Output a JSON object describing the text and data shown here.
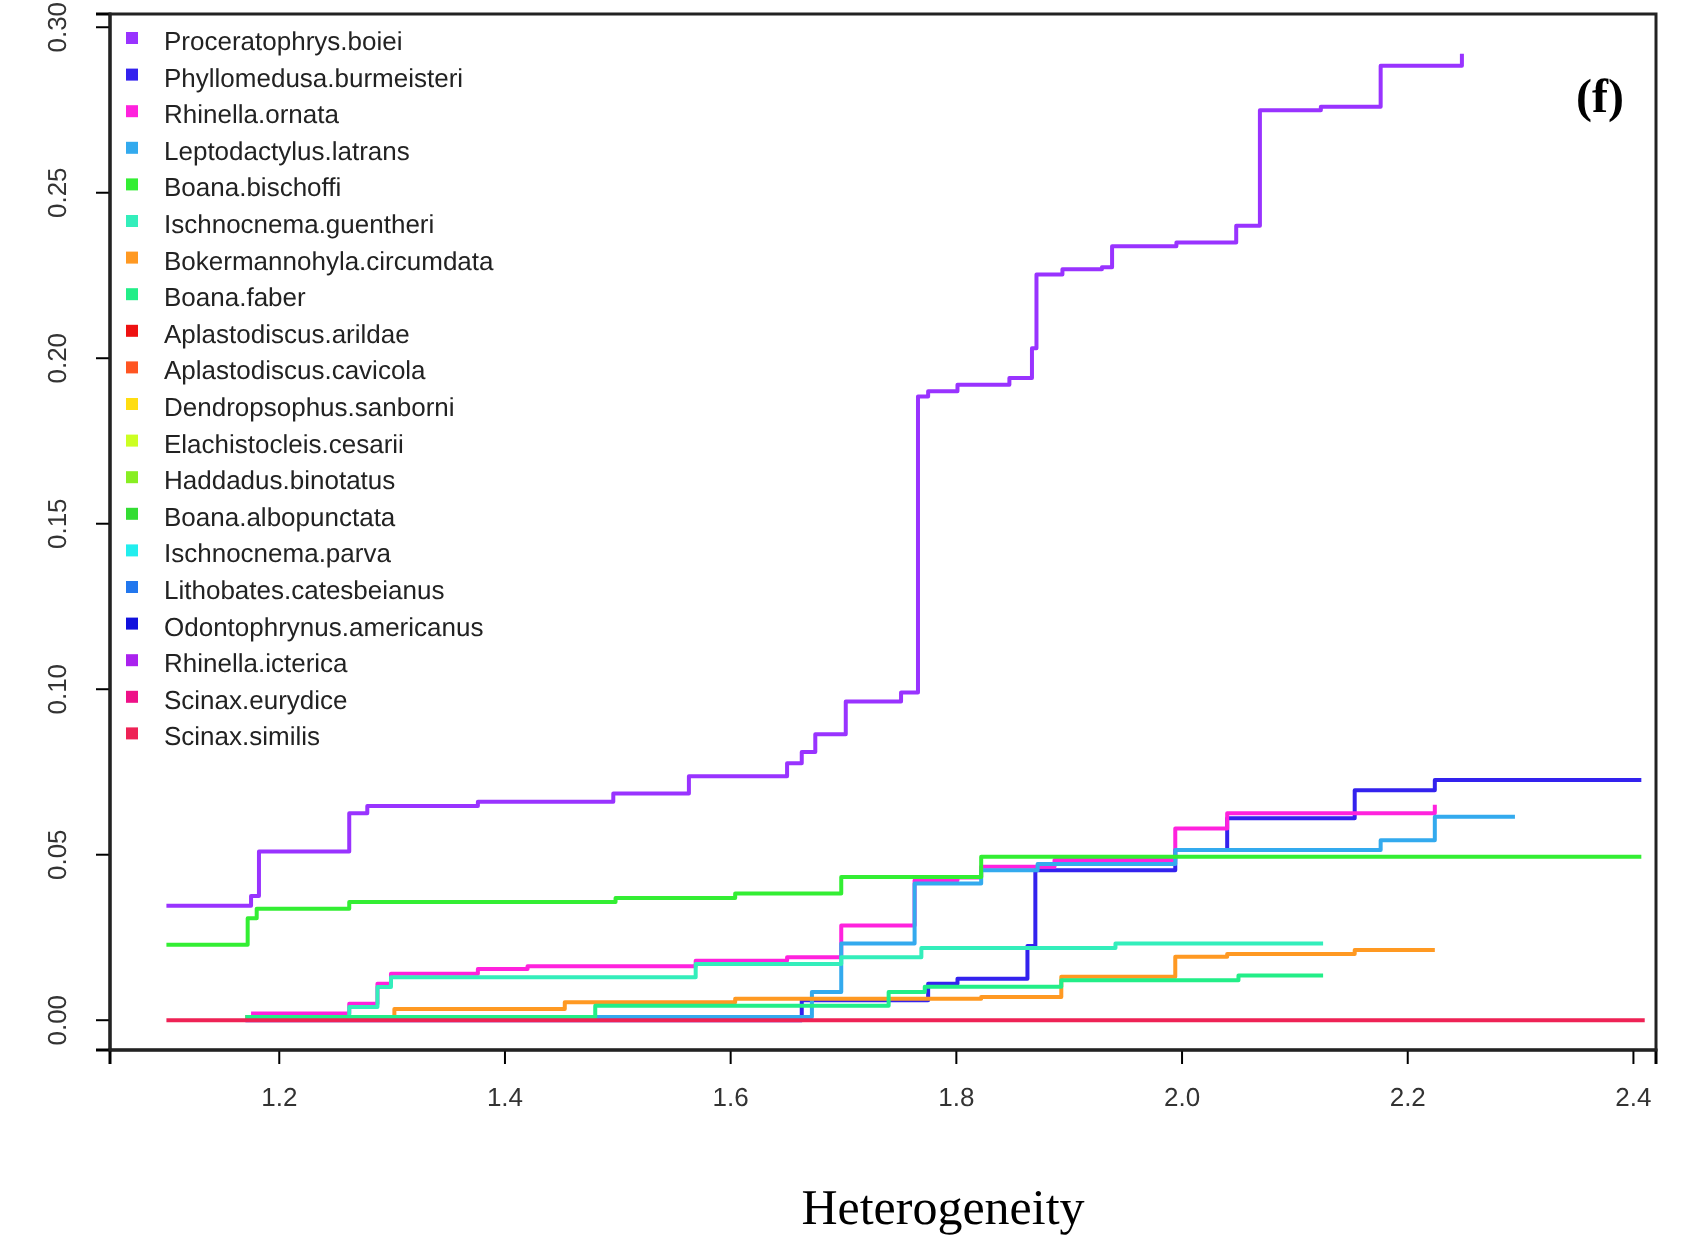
{
  "chart_data": {
    "type": "step",
    "xlabel": "Heterogeneity",
    "annotations": [
      "(f)"
    ],
    "legend": "top left",
    "xlim": [
      1.05,
      2.42
    ],
    "ylim": [
      -0.009,
      0.304
    ],
    "xticks": [
      1.2,
      1.4,
      1.6,
      1.8,
      {
        "value": 2.0,
        "label": "2.0"
      },
      2.2,
      2.4
    ],
    "yticks": [
      {
        "value": 0,
        "label": "0.00"
      },
      0.05,
      {
        "value": 0.1,
        "label": "0.10"
      },
      0.15,
      {
        "value": 0.2,
        "label": "0.20"
      },
      0.25,
      {
        "value": 0.3,
        "label": "0.30"
      }
    ],
    "series": [
      {
        "name": "Proceratophrys.boiei",
        "color": "#9933ff",
        "x": [
          1.1,
          1.175,
          1.182,
          1.262,
          1.278,
          1.376,
          1.496,
          1.563,
          1.65,
          1.663,
          1.675,
          1.702,
          1.751,
          1.766,
          1.775,
          1.801,
          1.847,
          1.867,
          1.871,
          1.894,
          1.929,
          1.938,
          1.995,
          2.048,
          2.069,
          2.123,
          2.176,
          2.248
        ],
        "values": [
          0.0346,
          0.0375,
          0.051,
          0.0625,
          0.0647,
          0.066,
          0.0685,
          0.0737,
          0.0776,
          0.081,
          0.0864,
          0.0963,
          0.099,
          0.1884,
          0.19,
          0.192,
          0.194,
          0.203,
          0.2253,
          0.2269,
          0.2275,
          0.2338,
          0.235,
          0.24,
          0.2749,
          0.276,
          0.2884,
          0.292
        ]
      },
      {
        "name": "Phyllomedusa.burmeisteri",
        "color": "#3322ee",
        "x": [
          1.17,
          1.663,
          1.775,
          1.801,
          1.863,
          1.87,
          1.994,
          2.04,
          2.153,
          2.224,
          2.407
        ],
        "values": [
          0,
          0.006,
          0.011,
          0.0125,
          0.0224,
          0.0453,
          0.0514,
          0.061,
          0.0695,
          0.0726,
          0.0726
        ]
      },
      {
        "name": "Rhinella.ornata",
        "color": "#ff22dd",
        "x": [
          1.175,
          1.262,
          1.287,
          1.299,
          1.376,
          1.42,
          1.569,
          1.65,
          1.698,
          1.763,
          1.801,
          1.822,
          1.887,
          1.994,
          2.04,
          2.224
        ],
        "values": [
          0.002,
          0.005,
          0.011,
          0.014,
          0.0155,
          0.0163,
          0.018,
          0.019,
          0.0286,
          0.0423,
          0.0431,
          0.0464,
          0.0484,
          0.0579,
          0.0625,
          0.0651
        ]
      },
      {
        "name": "Leptodactylus.latrans",
        "color": "#33aaee",
        "x": [
          1.17,
          1.672,
          1.698,
          1.763,
          1.822,
          1.872,
          1.994,
          2.176,
          2.224,
          2.295
        ],
        "values": [
          0.001,
          0.0085,
          0.0232,
          0.0413,
          0.0453,
          0.0472,
          0.0514,
          0.0544,
          0.0615,
          0.0615
        ]
      },
      {
        "name": "Boana.bischoffi",
        "color": "#33ee33",
        "x": [
          1.1,
          1.172,
          1.18,
          1.262,
          1.498,
          1.604,
          1.698,
          1.822,
          2.407
        ],
        "values": [
          0.0228,
          0.0308,
          0.0337,
          0.0357,
          0.0369,
          0.0383,
          0.0433,
          0.0494,
          0.0494
        ]
      },
      {
        "name": "Ischnocnema.guentheri",
        "color": "#33eebb",
        "x": [
          1.17,
          1.262,
          1.287,
          1.299,
          1.569,
          1.698,
          1.769,
          1.941,
          2.125
        ],
        "values": [
          0.001,
          0.004,
          0.01,
          0.013,
          0.017,
          0.019,
          0.0218,
          0.0232,
          0.0232
        ]
      },
      {
        "name": "Bokermannohyla.circumdata",
        "color": "#ff9922",
        "x": [
          1.17,
          1.302,
          1.453,
          1.604,
          1.822,
          1.893,
          1.994,
          2.04,
          2.153,
          2.224
        ],
        "values": [
          0.001,
          0.0034,
          0.0054,
          0.0065,
          0.007,
          0.0131,
          0.0192,
          0.02,
          0.0212,
          0.0212
        ]
      },
      {
        "name": "Boana.faber",
        "color": "#22ee88",
        "x": [
          1.17,
          1.48,
          1.74,
          1.772,
          1.893,
          2.05,
          2.125
        ],
        "values": [
          0.001,
          0.0044,
          0.0085,
          0.0101,
          0.0121,
          0.0135,
          0.0135
        ]
      },
      {
        "name": "Aplastodiscus.arildae",
        "color": "#ee1111"
      },
      {
        "name": "Aplastodiscus.cavicola",
        "color": "#ff5522"
      },
      {
        "name": "Dendropsophus.sanborni",
        "color": "#ffdd11"
      },
      {
        "name": "Elachistocleis.cesarii",
        "color": "#ccff22"
      },
      {
        "name": "Haddadus.binotatus",
        "color": "#88ee22"
      },
      {
        "name": "Boana.albopunctata",
        "color": "#33dd33"
      },
      {
        "name": "Ischnocnema.parva",
        "color": "#22eeee"
      },
      {
        "name": "Lithobates.catesbeianus",
        "color": "#2277ee"
      },
      {
        "name": "Odontophrynus.americanus",
        "color": "#1111dd"
      },
      {
        "name": "Rhinella.icterica",
        "color": "#aa22ee"
      },
      {
        "name": "Scinax.eurydice",
        "color": "#ee1188"
      },
      {
        "name": "Scinax.similis",
        "color": "#ee2255",
        "x": [
          1.1,
          2.41
        ],
        "values": [
          0,
          0
        ]
      }
    ]
  }
}
